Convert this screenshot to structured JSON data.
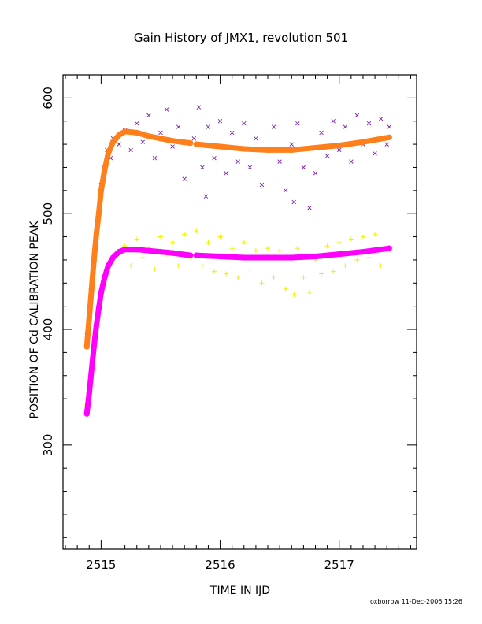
{
  "chart_data": {
    "type": "scatter",
    "title": "Gain History of JMX1, revolution 501",
    "xlabel": "TIME IN IJD",
    "ylabel": "POSITION OF Cd CALIBRATION PEAK",
    "xlim": [
      2514.68,
      2517.65
    ],
    "ylim": [
      210,
      620
    ],
    "x_ticks": [
      2515,
      2516,
      2517
    ],
    "x_tick_labels": [
      "2515",
      "2516",
      "2517"
    ],
    "y_ticks": [
      300,
      400,
      500,
      600
    ],
    "y_tick_labels": [
      "300",
      "400",
      "500",
      "600"
    ],
    "grid": false,
    "legend": "none",
    "series": [
      {
        "marker": "x",
        "color": "#7a1fa8",
        "points": [
          [
            2514.88,
            395
          ],
          [
            2514.9,
            410
          ],
          [
            2514.92,
            430
          ],
          [
            2514.94,
            455
          ],
          [
            2514.96,
            480
          ],
          [
            2514.98,
            505
          ],
          [
            2515.0,
            525
          ],
          [
            2515.02,
            540
          ],
          [
            2515.05,
            555
          ],
          [
            2515.08,
            548
          ],
          [
            2515.1,
            565
          ],
          [
            2515.15,
            560
          ],
          [
            2515.2,
            572
          ],
          [
            2515.25,
            555
          ],
          [
            2515.3,
            578
          ],
          [
            2515.35,
            562
          ],
          [
            2515.4,
            585
          ],
          [
            2515.45,
            548
          ],
          [
            2515.5,
            570
          ],
          [
            2515.55,
            590
          ],
          [
            2515.6,
            558
          ],
          [
            2515.65,
            575
          ],
          [
            2515.7,
            530
          ],
          [
            2515.78,
            565
          ],
          [
            2515.82,
            592
          ],
          [
            2515.85,
            540
          ],
          [
            2515.88,
            515
          ],
          [
            2515.9,
            575
          ],
          [
            2515.95,
            548
          ],
          [
            2516.0,
            580
          ],
          [
            2516.05,
            535
          ],
          [
            2516.1,
            570
          ],
          [
            2516.15,
            545
          ],
          [
            2516.2,
            578
          ],
          [
            2516.25,
            540
          ],
          [
            2516.3,
            565
          ],
          [
            2516.35,
            525
          ],
          [
            2516.4,
            555
          ],
          [
            2516.45,
            575
          ],
          [
            2516.5,
            545
          ],
          [
            2516.55,
            520
          ],
          [
            2516.6,
            560
          ],
          [
            2516.62,
            510
          ],
          [
            2516.65,
            578
          ],
          [
            2516.7,
            540
          ],
          [
            2516.75,
            505
          ],
          [
            2516.8,
            535
          ],
          [
            2516.85,
            570
          ],
          [
            2516.9,
            550
          ],
          [
            2516.95,
            580
          ],
          [
            2517.0,
            555
          ],
          [
            2517.05,
            575
          ],
          [
            2517.1,
            545
          ],
          [
            2517.15,
            585
          ],
          [
            2517.2,
            560
          ],
          [
            2517.25,
            578
          ],
          [
            2517.3,
            552
          ],
          [
            2517.35,
            582
          ],
          [
            2517.4,
            560
          ],
          [
            2517.42,
            575
          ]
        ]
      },
      {
        "marker": "+",
        "color": "#f0f000",
        "points": [
          [
            2514.88,
            335
          ],
          [
            2514.9,
            350
          ],
          [
            2514.93,
            375
          ],
          [
            2514.96,
            400
          ],
          [
            2515.0,
            425
          ],
          [
            2515.03,
            440
          ],
          [
            2515.06,
            450
          ],
          [
            2515.1,
            458
          ],
          [
            2515.15,
            465
          ],
          [
            2515.2,
            472
          ],
          [
            2515.25,
            455
          ],
          [
            2515.3,
            478
          ],
          [
            2515.35,
            462
          ],
          [
            2515.4,
            470
          ],
          [
            2515.45,
            452
          ],
          [
            2515.5,
            480
          ],
          [
            2515.55,
            465
          ],
          [
            2515.6,
            475
          ],
          [
            2515.65,
            455
          ],
          [
            2515.7,
            482
          ],
          [
            2515.75,
            462
          ],
          [
            2515.8,
            485
          ],
          [
            2515.85,
            455
          ],
          [
            2515.9,
            475
          ],
          [
            2515.95,
            450
          ],
          [
            2516.0,
            480
          ],
          [
            2516.05,
            448
          ],
          [
            2516.1,
            470
          ],
          [
            2516.15,
            445
          ],
          [
            2516.2,
            475
          ],
          [
            2516.25,
            452
          ],
          [
            2516.3,
            468
          ],
          [
            2516.35,
            440
          ],
          [
            2516.4,
            470
          ],
          [
            2516.45,
            445
          ],
          [
            2516.5,
            468
          ],
          [
            2516.55,
            435
          ],
          [
            2516.6,
            462
          ],
          [
            2516.62,
            430
          ],
          [
            2516.65,
            470
          ],
          [
            2516.7,
            445
          ],
          [
            2516.75,
            432
          ],
          [
            2516.8,
            460
          ],
          [
            2516.85,
            448
          ],
          [
            2516.9,
            472
          ],
          [
            2516.95,
            450
          ],
          [
            2517.0,
            475
          ],
          [
            2517.05,
            455
          ],
          [
            2517.1,
            478
          ],
          [
            2517.15,
            460
          ],
          [
            2517.2,
            480
          ],
          [
            2517.25,
            462
          ],
          [
            2517.3,
            482
          ],
          [
            2517.35,
            455
          ],
          [
            2517.4,
            470
          ]
        ]
      },
      {
        "marker": "dense",
        "color": "#ff7f1a",
        "points": [
          [
            2514.88,
            385
          ],
          [
            2514.9,
            410
          ],
          [
            2514.92,
            435
          ],
          [
            2514.94,
            460
          ],
          [
            2514.96,
            482
          ],
          [
            2514.98,
            500
          ],
          [
            2515.0,
            520
          ],
          [
            2515.03,
            538
          ],
          [
            2515.06,
            552
          ],
          [
            2515.1,
            562
          ],
          [
            2515.15,
            568
          ],
          [
            2515.2,
            571
          ],
          [
            2515.3,
            570
          ],
          [
            2515.4,
            567
          ],
          [
            2515.5,
            565
          ],
          [
            2515.6,
            563
          ],
          [
            2515.75,
            561
          ],
          [
            2515.8,
            560
          ],
          [
            2516.0,
            558
          ],
          [
            2516.2,
            556
          ],
          [
            2516.4,
            555
          ],
          [
            2516.6,
            555
          ],
          [
            2516.8,
            557
          ],
          [
            2517.0,
            559
          ],
          [
            2517.2,
            562
          ],
          [
            2517.42,
            566
          ]
        ]
      },
      {
        "marker": "dense",
        "color": "#ff00ff",
        "points": [
          [
            2514.88,
            327
          ],
          [
            2514.9,
            345
          ],
          [
            2514.92,
            365
          ],
          [
            2514.94,
            385
          ],
          [
            2514.96,
            403
          ],
          [
            2514.98,
            418
          ],
          [
            2515.0,
            432
          ],
          [
            2515.03,
            445
          ],
          [
            2515.06,
            455
          ],
          [
            2515.1,
            462
          ],
          [
            2515.15,
            467
          ],
          [
            2515.2,
            469
          ],
          [
            2515.3,
            469
          ],
          [
            2515.4,
            468
          ],
          [
            2515.5,
            467
          ],
          [
            2515.6,
            466
          ],
          [
            2515.75,
            464
          ],
          [
            2515.8,
            464
          ],
          [
            2516.0,
            463
          ],
          [
            2516.2,
            462
          ],
          [
            2516.4,
            462
          ],
          [
            2516.6,
            462
          ],
          [
            2516.8,
            463
          ],
          [
            2517.0,
            465
          ],
          [
            2517.2,
            467
          ],
          [
            2517.42,
            470
          ]
        ]
      }
    ]
  },
  "footer": {
    "credit": "oxborrow  11-Dec-2006 15:26"
  }
}
